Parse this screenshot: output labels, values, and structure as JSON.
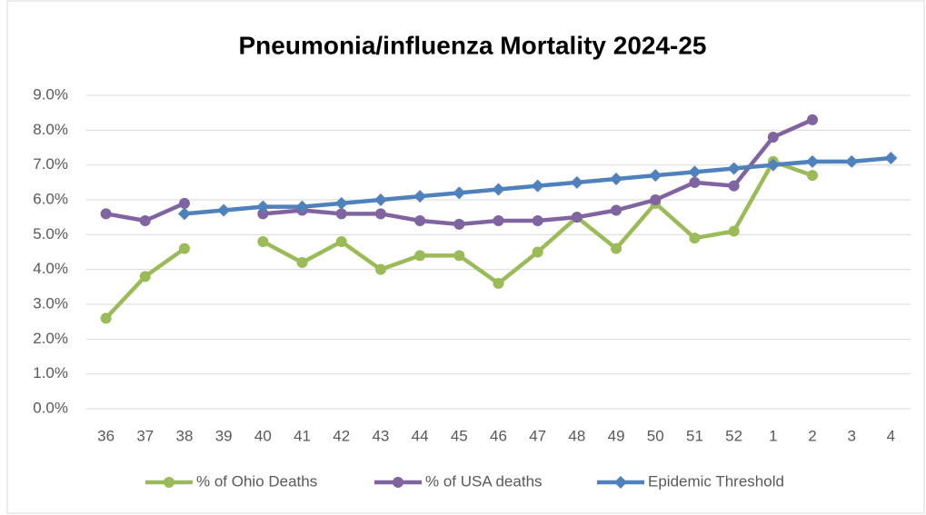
{
  "chart_data": {
    "type": "line",
    "title": "Pneumonia/influenza Mortality 2024-25",
    "categories": [
      "36",
      "37",
      "38",
      "39",
      "40",
      "41",
      "42",
      "43",
      "44",
      "45",
      "46",
      "47",
      "48",
      "49",
      "50",
      "51",
      "52",
      "1",
      "2",
      "3",
      "4"
    ],
    "series": [
      {
        "name": "% of Ohio Deaths",
        "color": "#9bbb59",
        "marker": "circle",
        "values": [
          2.6,
          3.8,
          4.6,
          null,
          4.8,
          4.2,
          4.8,
          4.0,
          4.4,
          4.4,
          3.6,
          4.5,
          5.5,
          4.6,
          5.9,
          4.9,
          5.1,
          7.1,
          6.7,
          null,
          null
        ]
      },
      {
        "name": "% of USA deaths",
        "color": "#8064a2",
        "marker": "circle",
        "values": [
          5.6,
          5.4,
          5.9,
          null,
          5.6,
          5.7,
          5.6,
          5.6,
          5.4,
          5.3,
          5.4,
          5.4,
          5.5,
          5.7,
          6.0,
          6.5,
          6.4,
          7.8,
          8.3,
          null,
          null
        ]
      },
      {
        "name": "Epidemic Threshold",
        "color": "#4f81bd",
        "marker": "diamond",
        "values": [
          null,
          null,
          5.6,
          5.7,
          5.8,
          5.8,
          5.9,
          6.0,
          6.1,
          6.2,
          6.3,
          6.4,
          6.5,
          6.6,
          6.7,
          6.8,
          6.9,
          7.0,
          7.1,
          7.1,
          7.2
        ]
      }
    ],
    "ylim": [
      0,
      9
    ],
    "yticks": [
      {
        "value": 0,
        "label": "0.0%"
      },
      {
        "value": 1,
        "label": "1.0%"
      },
      {
        "value": 2,
        "label": "2.0%"
      },
      {
        "value": 3,
        "label": "3.0%"
      },
      {
        "value": 4,
        "label": "4.0%"
      },
      {
        "value": 5,
        "label": "5.0%"
      },
      {
        "value": 6,
        "label": "6.0%"
      },
      {
        "value": 7,
        "label": "7.0%"
      },
      {
        "value": 8,
        "label": "8.0%"
      },
      {
        "value": 9,
        "label": "9.0%"
      }
    ],
    "grid": true,
    "legend": "bottom"
  }
}
